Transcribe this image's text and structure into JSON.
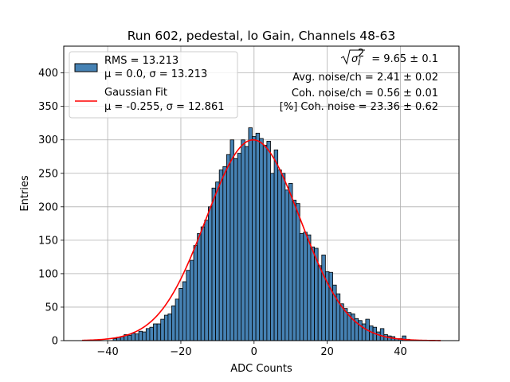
{
  "chart_data": {
    "type": "bar",
    "title": "Run 602, pedestal, lo Gain, Channels 48-63",
    "xlabel": "ADC Counts",
    "ylabel": "Entries",
    "xlim": [
      -52,
      56
    ],
    "ylim": [
      0,
      440
    ],
    "xticks": [
      -40,
      -20,
      0,
      20,
      40
    ],
    "yticks": [
      0,
      50,
      100,
      150,
      200,
      250,
      300,
      350,
      400
    ],
    "grid": true,
    "bin_width": 1,
    "bar_color": "#4682b4",
    "bar_edge_color": "#000000",
    "fit_color": "#ff0000",
    "bins": [
      {
        "x": -38,
        "y": 3
      },
      {
        "x": -37,
        "y": 5
      },
      {
        "x": -36,
        "y": 6
      },
      {
        "x": -35,
        "y": 9
      },
      {
        "x": -34,
        "y": 8
      },
      {
        "x": -33,
        "y": 11
      },
      {
        "x": -32,
        "y": 10
      },
      {
        "x": -31,
        "y": 14
      },
      {
        "x": -30,
        "y": 13
      },
      {
        "x": -29,
        "y": 18
      },
      {
        "x": -28,
        "y": 20
      },
      {
        "x": -27,
        "y": 25
      },
      {
        "x": -26,
        "y": 25
      },
      {
        "x": -25,
        "y": 32
      },
      {
        "x": -24,
        "y": 38
      },
      {
        "x": -23,
        "y": 40
      },
      {
        "x": -22,
        "y": 52
      },
      {
        "x": -21,
        "y": 62
      },
      {
        "x": -20,
        "y": 78
      },
      {
        "x": -19,
        "y": 88
      },
      {
        "x": -18,
        "y": 105
      },
      {
        "x": -17,
        "y": 120
      },
      {
        "x": -16,
        "y": 142
      },
      {
        "x": -15,
        "y": 160
      },
      {
        "x": -14,
        "y": 170
      },
      {
        "x": -13,
        "y": 180
      },
      {
        "x": -12,
        "y": 200
      },
      {
        "x": -11,
        "y": 228
      },
      {
        "x": -10,
        "y": 237
      },
      {
        "x": -9,
        "y": 255
      },
      {
        "x": -8,
        "y": 260
      },
      {
        "x": -7,
        "y": 278
      },
      {
        "x": -6,
        "y": 300
      },
      {
        "x": -5,
        "y": 272
      },
      {
        "x": -4,
        "y": 280
      },
      {
        "x": -3,
        "y": 300
      },
      {
        "x": -2,
        "y": 290
      },
      {
        "x": -1,
        "y": 318
      },
      {
        "x": 0,
        "y": 305
      },
      {
        "x": 1,
        "y": 310
      },
      {
        "x": 2,
        "y": 302
      },
      {
        "x": 3,
        "y": 292
      },
      {
        "x": 4,
        "y": 298
      },
      {
        "x": 5,
        "y": 250
      },
      {
        "x": 6,
        "y": 285
      },
      {
        "x": 7,
        "y": 255
      },
      {
        "x": 8,
        "y": 250
      },
      {
        "x": 9,
        "y": 225
      },
      {
        "x": 10,
        "y": 235
      },
      {
        "x": 11,
        "y": 210
      },
      {
        "x": 12,
        "y": 205
      },
      {
        "x": 13,
        "y": 160
      },
      {
        "x": 14,
        "y": 162
      },
      {
        "x": 15,
        "y": 158
      },
      {
        "x": 16,
        "y": 140
      },
      {
        "x": 17,
        "y": 138
      },
      {
        "x": 18,
        "y": 112
      },
      {
        "x": 19,
        "y": 128
      },
      {
        "x": 20,
        "y": 103
      },
      {
        "x": 21,
        "y": 102
      },
      {
        "x": 22,
        "y": 83
      },
      {
        "x": 23,
        "y": 70
      },
      {
        "x": 24,
        "y": 55
      },
      {
        "x": 25,
        "y": 48
      },
      {
        "x": 26,
        "y": 42
      },
      {
        "x": 27,
        "y": 40
      },
      {
        "x": 28,
        "y": 33
      },
      {
        "x": 29,
        "y": 30
      },
      {
        "x": 30,
        "y": 25
      },
      {
        "x": 31,
        "y": 32
      },
      {
        "x": 32,
        "y": 22
      },
      {
        "x": 33,
        "y": 20
      },
      {
        "x": 34,
        "y": 13
      },
      {
        "x": 35,
        "y": 18
      },
      {
        "x": 36,
        "y": 9
      },
      {
        "x": 37,
        "y": 7
      },
      {
        "x": 38,
        "y": 6
      },
      {
        "x": 39,
        "y": 3
      },
      {
        "x": 40,
        "y": 3
      },
      {
        "x": 41,
        "y": 7
      },
      {
        "x": 42,
        "y": 2
      }
    ],
    "fit": {
      "mu": -0.255,
      "sigma": 12.861,
      "amplitude": 300,
      "x_range": [
        -47,
        51
      ]
    },
    "legend": {
      "placement": "upper-left",
      "entries": [
        {
          "kind": "patch",
          "line1": "RMS = 13.213",
          "line2": "μ = 0.0, σ = 13.213"
        },
        {
          "kind": "line",
          "line1": "Gaussian Fit",
          "line2": "μ = -0.255, σ = 12.861"
        }
      ]
    },
    "annotations": {
      "placement": "upper-right",
      "lines": [
        {
          "kind": "sigma",
          "text": " = 9.65 ± 0.1"
        },
        {
          "kind": "text",
          "text": "Avg. noise/ch = 2.41 ± 0.02"
        },
        {
          "kind": "text",
          "text": "Coh. noise/ch = 0.56 ± 0.01"
        },
        {
          "kind": "text",
          "text": "[%] Coh. noise = 23.36 ± 0.62"
        }
      ]
    }
  }
}
